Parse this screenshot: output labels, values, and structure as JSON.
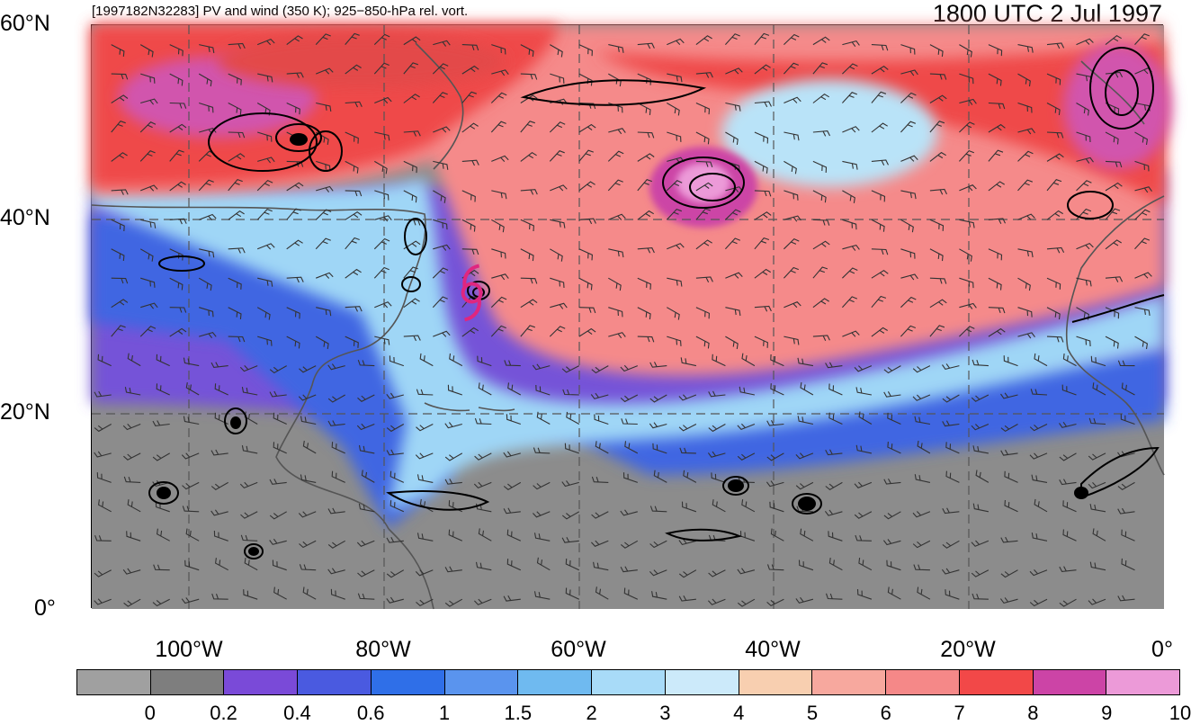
{
  "header": {
    "left_title": "[1997182N32283] PV and wind (350 K); 925−850-hPa rel. vort.",
    "right_title": "1800 UTC 2 Jul 1997"
  },
  "map": {
    "lat_labels": [
      "60°N",
      "40°N",
      "20°N",
      "0°"
    ],
    "lon_labels": [
      "100°W",
      "80°W",
      "60°W",
      "40°W",
      "20°W",
      "0°"
    ],
    "extent": {
      "lon_min": -110,
      "lon_max": 0,
      "lat_min": 0,
      "lat_max": 60
    },
    "storm_center": {
      "lon": -71,
      "lat": 32.5
    },
    "storm_symbol_color": "#e0267f",
    "contour_color": "#000000",
    "coastline_color": "#555555",
    "grid_color": "#555555"
  },
  "colorbar": {
    "labels": [
      "0",
      "0.2",
      "0.4",
      "0.6",
      "1",
      "1.5",
      "2",
      "3",
      "4",
      "5",
      "6",
      "7",
      "8",
      "9",
      "10"
    ],
    "colors": [
      "#a0a0a0",
      "#7e7e7e",
      "#7a4ad8",
      "#4a5ae0",
      "#2f6fe8",
      "#5a94ee",
      "#6fbaf0",
      "#a8dbf8",
      "#cceafa",
      "#f8cfb0",
      "#f7a89e",
      "#f58888",
      "#f24848",
      "#cc44a6",
      "#ec9ad8"
    ]
  }
}
